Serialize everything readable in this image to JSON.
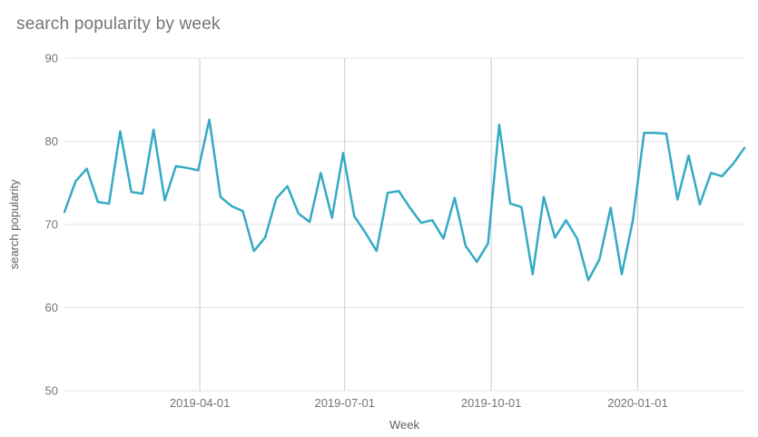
{
  "chart_data": {
    "type": "line",
    "title": "search popularity by week",
    "xlabel": "Week",
    "ylabel": "search popularity",
    "ylim": [
      50,
      90
    ],
    "yticks": [
      90,
      80,
      70,
      60,
      50
    ],
    "xticks": [
      "2019-04-01",
      "2019-07-01",
      "2019-10-01",
      "2020-01-01"
    ],
    "grid": true,
    "legend": "none",
    "series_name": "search popularity",
    "x": [
      "2019-01-06",
      "2019-01-13",
      "2019-01-20",
      "2019-01-27",
      "2019-02-03",
      "2019-02-10",
      "2019-02-17",
      "2019-02-24",
      "2019-03-03",
      "2019-03-10",
      "2019-03-17",
      "2019-03-24",
      "2019-03-31",
      "2019-04-07",
      "2019-04-14",
      "2019-04-21",
      "2019-04-28",
      "2019-05-05",
      "2019-05-12",
      "2019-05-19",
      "2019-05-26",
      "2019-06-02",
      "2019-06-09",
      "2019-06-16",
      "2019-06-23",
      "2019-06-30",
      "2019-07-07",
      "2019-07-14",
      "2019-07-21",
      "2019-07-28",
      "2019-08-04",
      "2019-08-11",
      "2019-08-18",
      "2019-08-25",
      "2019-09-01",
      "2019-09-08",
      "2019-09-15",
      "2019-09-22",
      "2019-09-29",
      "2019-10-06",
      "2019-10-13",
      "2019-10-20",
      "2019-10-27",
      "2019-11-03",
      "2019-11-10",
      "2019-11-17",
      "2019-11-24",
      "2019-12-01",
      "2019-12-08",
      "2019-12-15",
      "2019-12-22",
      "2019-12-29",
      "2020-01-05",
      "2020-01-12",
      "2020-01-19",
      "2020-01-26",
      "2020-02-02",
      "2020-02-09",
      "2020-02-16",
      "2020-02-23",
      "2020-03-01",
      "2020-03-08"
    ],
    "values": [
      71.5,
      75.2,
      76.7,
      72.7,
      72.5,
      81.2,
      73.9,
      73.7,
      81.4,
      72.9,
      77.0,
      76.8,
      76.5,
      82.6,
      73.3,
      72.2,
      71.6,
      66.8,
      68.4,
      73.1,
      74.6,
      71.3,
      70.3,
      76.2,
      70.8,
      78.6,
      71.0,
      69.0,
      66.8,
      73.8,
      74.0,
      72.0,
      70.2,
      70.5,
      68.3,
      73.2,
      67.4,
      65.5,
      67.7,
      82.0,
      72.5,
      72.1,
      64.0,
      73.3,
      68.4,
      70.5,
      68.3,
      63.3,
      65.8,
      72.0,
      64.0,
      70.5,
      81.0,
      81.0,
      80.9,
      73.0,
      78.3,
      72.4,
      76.2,
      75.8,
      77.3,
      79.2
    ]
  },
  "colors": {
    "line": "#35aac4",
    "title_text": "#757575",
    "tick_text": "#757575",
    "axis_title_text": "#616161",
    "h_gridline": "#e3e3e3",
    "v_gridline": "#cccccc",
    "background": "#ffffff"
  }
}
